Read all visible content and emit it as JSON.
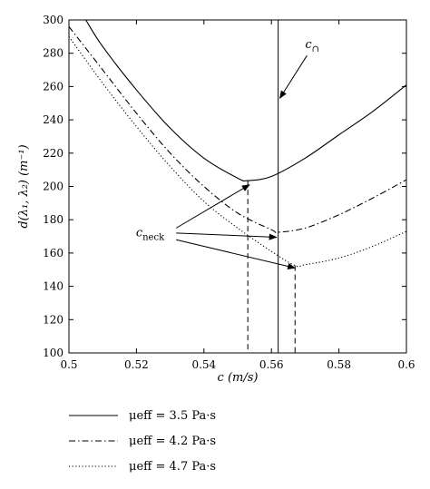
{
  "chart_data": {
    "type": "line",
    "xlabel": "c (m/s)",
    "ylabel": "d(λ₁, λ₂) (m⁻¹)",
    "xlim": [
      0.5,
      0.6
    ],
    "ylim": [
      100,
      300
    ],
    "x_ticks": [
      0.5,
      0.52,
      0.54,
      0.56,
      0.58,
      0.6
    ],
    "x_tick_labels": [
      "0.5",
      "0.52",
      "0.54",
      "0.56",
      "0.58",
      "0.6"
    ],
    "y_ticks": [
      100,
      120,
      140,
      160,
      180,
      200,
      220,
      240,
      260,
      280,
      300
    ],
    "y_tick_labels": [
      "100",
      "120",
      "140",
      "160",
      "180",
      "200",
      "220",
      "240",
      "260",
      "280",
      "300"
    ],
    "grid": false,
    "legend_placement": "below",
    "series": [
      {
        "name": "μeff = 3.5 Pa·s",
        "style": "solid",
        "x": [
          0.505,
          0.51,
          0.52,
          0.53,
          0.54,
          0.55,
          0.553,
          0.56,
          0.57,
          0.58,
          0.59,
          0.6
        ],
        "y": [
          300,
          284,
          258,
          235,
          217,
          205,
          203.5,
          206,
          217,
          231,
          245,
          261
        ],
        "neck_x": 0.553
      },
      {
        "name": "μeff = 4.2 Pa·s",
        "style": "dashdot",
        "x": [
          0.5,
          0.51,
          0.52,
          0.53,
          0.54,
          0.55,
          0.56,
          0.562,
          0.57,
          0.58,
          0.59,
          0.6
        ],
        "y": [
          296,
          270,
          244,
          220,
          200,
          184,
          174,
          172.5,
          175,
          183,
          193,
          204
        ],
        "neck_x": 0.562
      },
      {
        "name": "μeff = 4.7 Pa·s",
        "style": "dotted",
        "x": [
          0.5,
          0.51,
          0.52,
          0.53,
          0.54,
          0.55,
          0.56,
          0.567,
          0.57,
          0.58,
          0.59,
          0.6
        ],
        "y": [
          290,
          262,
          236,
          212,
          191,
          175,
          161,
          152.5,
          153,
          157,
          164,
          173
        ],
        "neck_x": 0.567
      }
    ],
    "vertical_line_x": 0.562,
    "annotations": {
      "c_cap": {
        "label": "c",
        "subscript": "∩",
        "text_x": 0.57,
        "text_y": 283,
        "arrow_to_x": 0.5625,
        "arrow_to_y": 253
      },
      "c_neck": {
        "label": "c",
        "subscript": "neck",
        "text_x": 0.522,
        "text_y": 170,
        "arrows": [
          {
            "from_x": 0.535,
            "from_y": 175,
            "to_x": 0.5535,
            "to_y": 201
          },
          {
            "from_x": 0.535,
            "from_y": 172,
            "to_x": 0.5615,
            "to_y": 169.5
          },
          {
            "from_x": 0.535,
            "from_y": 168,
            "to_x": 0.567,
            "to_y": 151
          }
        ]
      }
    }
  }
}
